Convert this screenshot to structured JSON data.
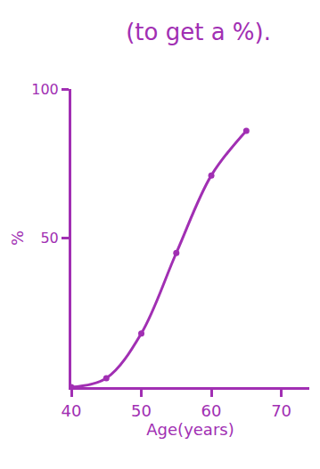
{
  "chart_data": {
    "type": "line",
    "title": "(to get a %).",
    "x": [
      40,
      45,
      50,
      55,
      60,
      65
    ],
    "values": [
      0,
      3,
      18,
      45,
      71,
      86
    ],
    "color": "#a12fb3",
    "marker": "circle",
    "line_style": "spline",
    "xlabel": "Age(years)",
    "ylabel": "%",
    "xlim": [
      40,
      74
    ],
    "xticks": [
      40,
      50,
      60,
      70
    ],
    "ylim": [
      0,
      100
    ],
    "yticks": [
      50,
      100
    ],
    "grid": false
  }
}
